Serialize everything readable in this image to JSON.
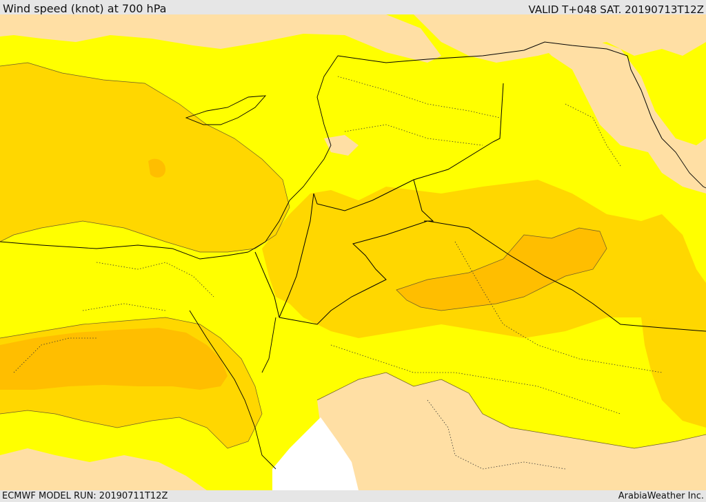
{
  "header": {
    "title": "Wind speed (knot) at 700 hPa",
    "valid": "VALID T+048 SAT. 20190713T12Z"
  },
  "footer": {
    "model_run": "ECMWF MODEL RUN: 20190711T12Z",
    "credit": "ArabiaWeather Inc."
  },
  "map": {
    "colors": {
      "band_low": "#ffdfa4",
      "band_mid": "#ffff00",
      "band_high": "#ffd700",
      "band_higher": "#ffbe00",
      "no_data": "#ffffff"
    }
  }
}
